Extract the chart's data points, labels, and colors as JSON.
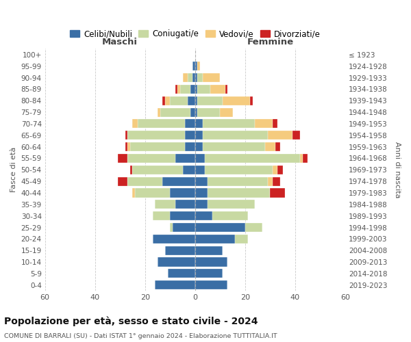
{
  "age_groups": [
    "0-4",
    "5-9",
    "10-14",
    "15-19",
    "20-24",
    "25-29",
    "30-34",
    "35-39",
    "40-44",
    "45-49",
    "50-54",
    "55-59",
    "60-64",
    "65-69",
    "70-74",
    "75-79",
    "80-84",
    "85-89",
    "90-94",
    "95-99",
    "100+"
  ],
  "birth_years": [
    "2019-2023",
    "2014-2018",
    "2009-2013",
    "2004-2008",
    "1999-2003",
    "1994-1998",
    "1989-1993",
    "1984-1988",
    "1979-1983",
    "1974-1978",
    "1969-1973",
    "1964-1968",
    "1959-1963",
    "1954-1958",
    "1949-1953",
    "1944-1948",
    "1939-1943",
    "1934-1938",
    "1929-1933",
    "1924-1928",
    "≤ 1923"
  ],
  "maschi": {
    "celibe": [
      16,
      11,
      15,
      12,
      17,
      9,
      10,
      8,
      10,
      13,
      5,
      8,
      4,
      4,
      4,
      2,
      3,
      2,
      1,
      1,
      0
    ],
    "coniugato": [
      0,
      0,
      0,
      0,
      0,
      1,
      7,
      8,
      14,
      14,
      20,
      19,
      22,
      23,
      19,
      12,
      7,
      4,
      2,
      0,
      0
    ],
    "vedovo": [
      0,
      0,
      0,
      0,
      0,
      0,
      0,
      0,
      1,
      0,
      0,
      0,
      1,
      0,
      2,
      1,
      2,
      1,
      2,
      0,
      0
    ],
    "divorziato": [
      0,
      0,
      0,
      0,
      0,
      0,
      0,
      0,
      0,
      4,
      1,
      4,
      1,
      1,
      0,
      0,
      1,
      1,
      0,
      0,
      0
    ]
  },
  "femmine": {
    "nubile": [
      13,
      11,
      13,
      11,
      16,
      20,
      7,
      5,
      5,
      5,
      4,
      4,
      3,
      3,
      3,
      1,
      1,
      1,
      1,
      1,
      0
    ],
    "coniugata": [
      0,
      0,
      0,
      0,
      5,
      7,
      14,
      19,
      25,
      24,
      27,
      38,
      25,
      26,
      21,
      9,
      10,
      5,
      2,
      0,
      0
    ],
    "vedova": [
      0,
      0,
      0,
      0,
      0,
      0,
      0,
      0,
      0,
      2,
      2,
      1,
      4,
      10,
      7,
      5,
      11,
      6,
      7,
      1,
      0
    ],
    "divorziata": [
      0,
      0,
      0,
      0,
      0,
      0,
      0,
      0,
      6,
      3,
      2,
      2,
      2,
      3,
      2,
      0,
      1,
      1,
      0,
      0,
      0
    ]
  },
  "colors": {
    "celibe": "#3a6ea5",
    "coniugato": "#c8d9a2",
    "vedovo": "#f5cb7e",
    "divorziato": "#cc2222"
  },
  "title": "Popolazione per età, sesso e stato civile - 2024",
  "subtitle": "COMUNE DI BARRALI (SU) - Dati ISTAT 1° gennaio 2024 - Elaborazione TUTTITALIA.IT",
  "xlabel_left": "Maschi",
  "xlabel_right": "Femmine",
  "ylabel_left": "Fasce di età",
  "ylabel_right": "Anni di nascita",
  "xlim": 60,
  "legend_labels": [
    "Celibi/Nubili",
    "Coniugati/e",
    "Vedovi/e",
    "Divorziati/e"
  ],
  "background_color": "#ffffff",
  "grid_color": "#bbbbbb",
  "tick_label_color": "#555555"
}
